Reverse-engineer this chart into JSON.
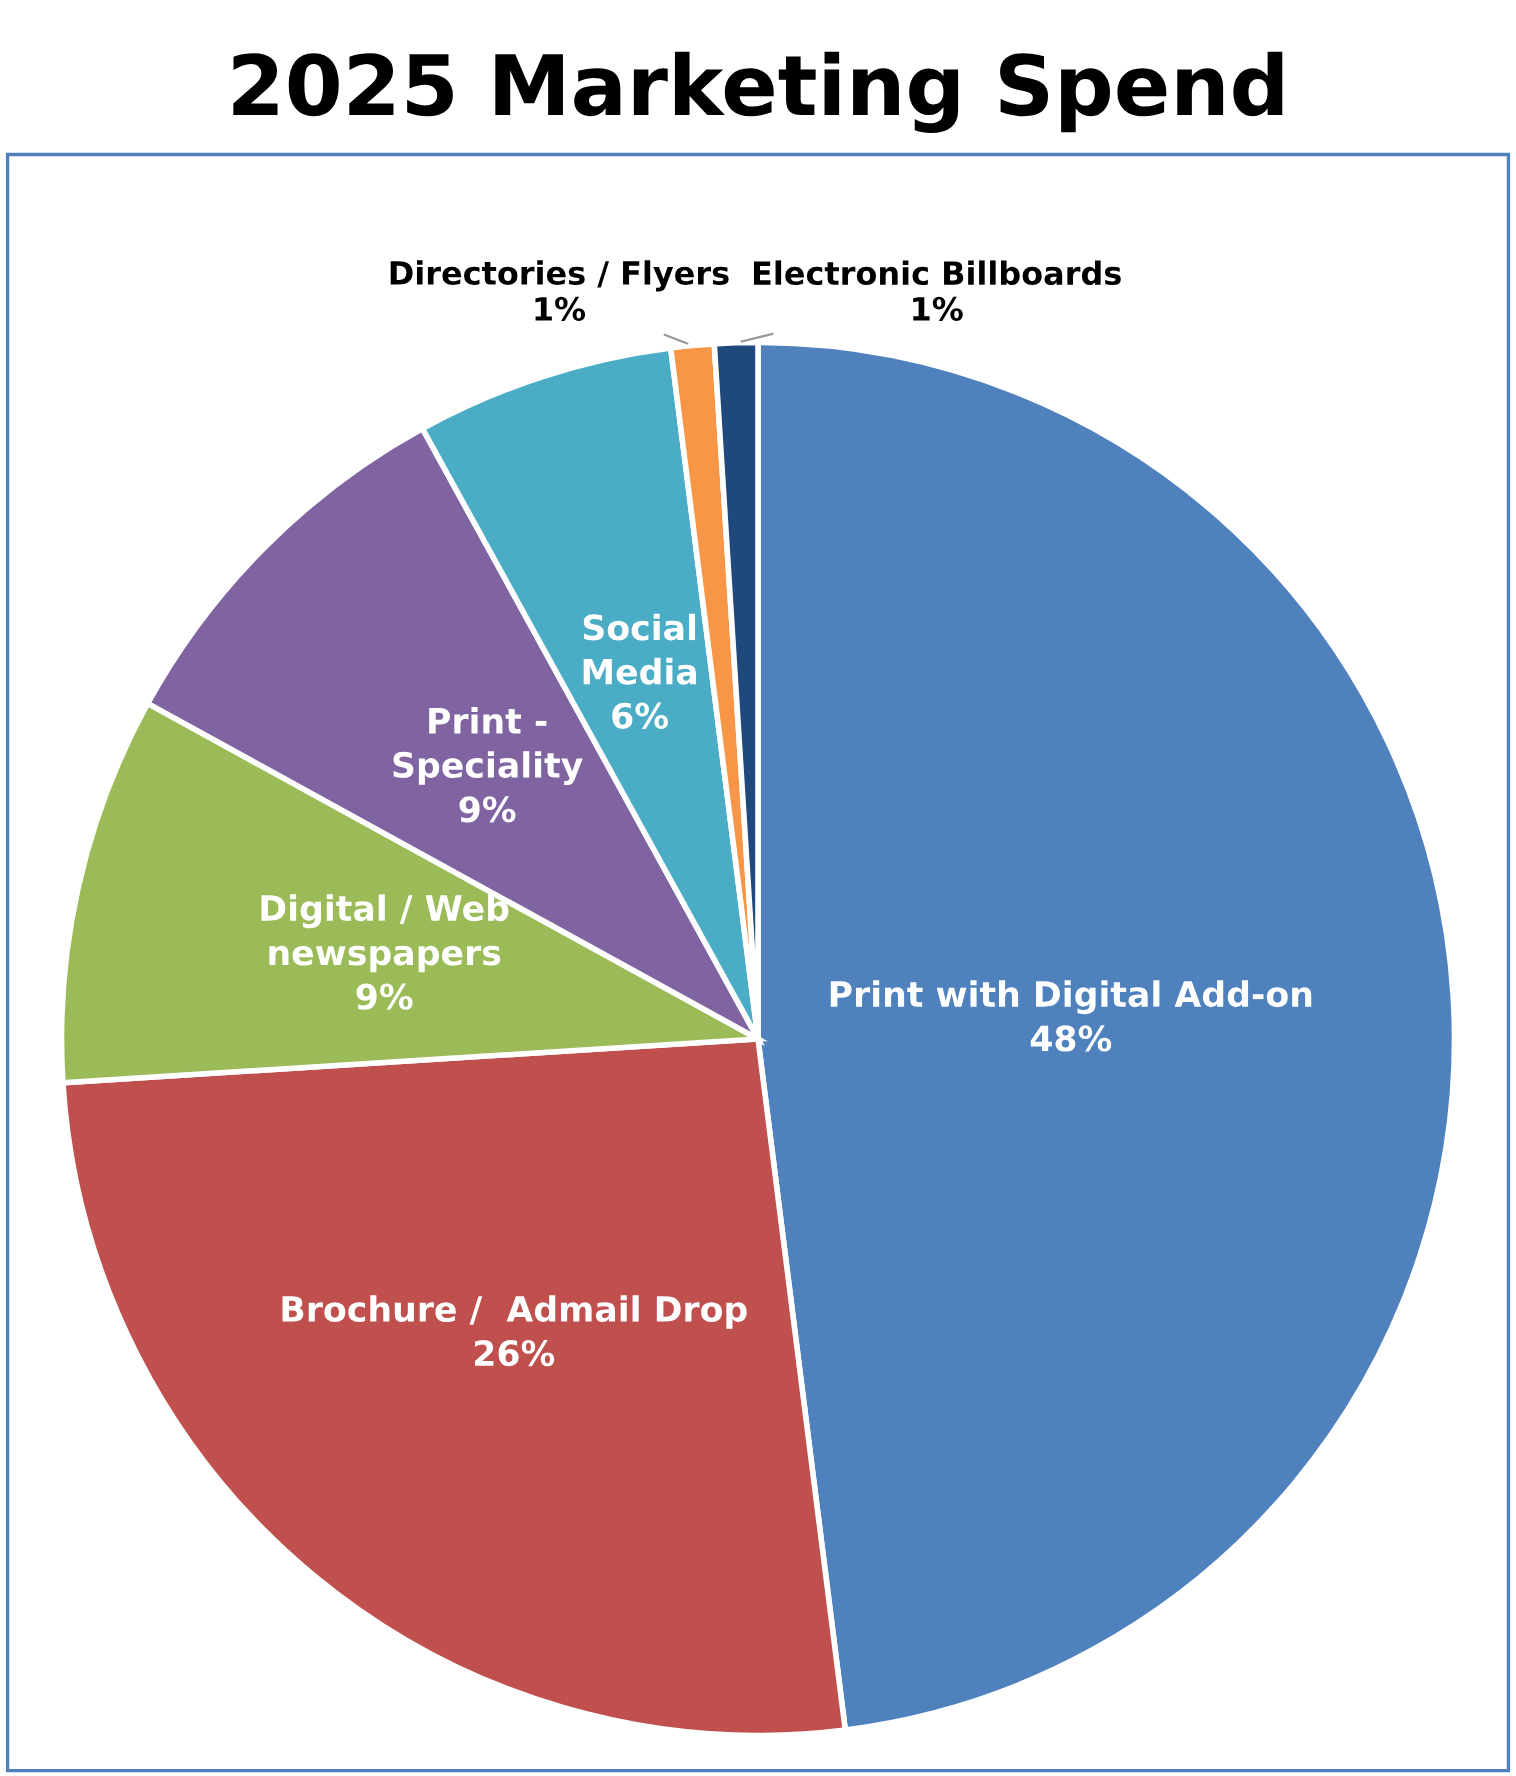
{
  "chart_data": {
    "type": "pie",
    "title": "2025 Marketing Spend",
    "categories": [
      "Print with Digital Add-on",
      "Brochure /  Admail Drop",
      "Digital / Web\nnewspapers",
      "Print -\nSpeciality",
      "Social\nMedia",
      "Directories / Flyers",
      "Electronic Billboards"
    ],
    "values": [
      48,
      26,
      9,
      9,
      6,
      1,
      1
    ],
    "value_labels": [
      "48%",
      "26%",
      "9%",
      "9%",
      "6%",
      "1%",
      "1%"
    ],
    "colors": [
      "#4f81bd",
      "#c0504d",
      "#9bbb59",
      "#8064a2",
      "#4bacc6",
      "#f79646",
      "#1f497d"
    ],
    "legend": false
  }
}
